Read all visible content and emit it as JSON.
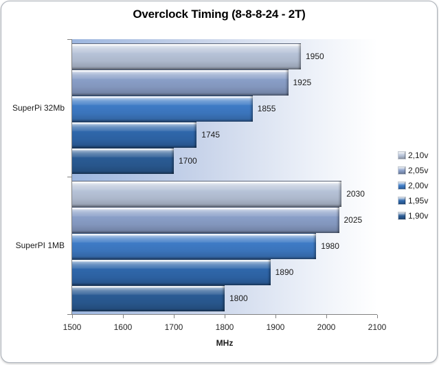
{
  "chart_data": {
    "type": "bar",
    "orientation": "horizontal",
    "title": "Overclock Timing (8-8-8-24 - 2T)",
    "xlabel": "MHz",
    "xlim": [
      1500,
      2100
    ],
    "xticks": [
      1500,
      1600,
      1700,
      1800,
      1900,
      2000,
      2100
    ],
    "categories": [
      "SuperPi 32Mb",
      "SuperPI 1MB"
    ],
    "series": [
      {
        "name": "2,10v",
        "color": "#b7c3d8",
        "values": [
          1950,
          2030
        ]
      },
      {
        "name": "2,05v",
        "color": "#8a9fc8",
        "values": [
          1925,
          2025
        ]
      },
      {
        "name": "2,00v",
        "color": "#3e7bc6",
        "values": [
          1855,
          1980
        ]
      },
      {
        "name": "1,95v",
        "color": "#2f67ab",
        "values": [
          1745,
          1890
        ]
      },
      {
        "name": "1,90v",
        "color": "#2a5b94",
        "values": [
          1700,
          1800
        ]
      }
    ],
    "value_labels": true,
    "legend_position": "right",
    "grid": false,
    "plot_background_gradient": [
      "#9cb6df",
      "#ffffff"
    ],
    "axis_color": "#808080",
    "text_color": "#1a1a1a"
  }
}
